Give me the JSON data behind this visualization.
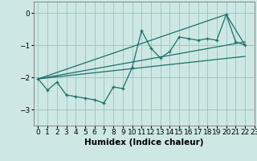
{
  "xlabel": "Humidex (Indice chaleur)",
  "xlim": [
    -0.5,
    23
  ],
  "ylim": [
    -3.5,
    0.35
  ],
  "yticks": [
    0,
    -1,
    -2,
    -3
  ],
  "xticks": [
    0,
    1,
    2,
    3,
    4,
    5,
    6,
    7,
    8,
    9,
    10,
    11,
    12,
    13,
    14,
    15,
    16,
    17,
    18,
    19,
    20,
    21,
    22,
    23
  ],
  "bg_color": "#cde8e4",
  "grid_color": "#a0c8c4",
  "line_color": "#1e6e6a",
  "line1_x": [
    0,
    1,
    2,
    3,
    4,
    5,
    6,
    7,
    8,
    9,
    10,
    11,
    12,
    13,
    14,
    15,
    16,
    17,
    18,
    19,
    20,
    21,
    22
  ],
  "line1_y": [
    -2.05,
    -2.4,
    -2.15,
    -2.55,
    -2.6,
    -2.65,
    -2.7,
    -2.8,
    -2.3,
    -2.35,
    -1.7,
    -0.55,
    -1.1,
    -1.4,
    -1.2,
    -0.75,
    -0.8,
    -0.85,
    -0.8,
    -0.85,
    -0.05,
    -0.9,
    -1.0
  ],
  "line2_x": [
    0,
    20,
    22
  ],
  "line2_y": [
    -2.05,
    -0.05,
    -1.0
  ],
  "line3_x": [
    0,
    22
  ],
  "line3_y": [
    -2.05,
    -0.9
  ],
  "line4_x": [
    0,
    22
  ],
  "line4_y": [
    -2.05,
    -1.35
  ]
}
